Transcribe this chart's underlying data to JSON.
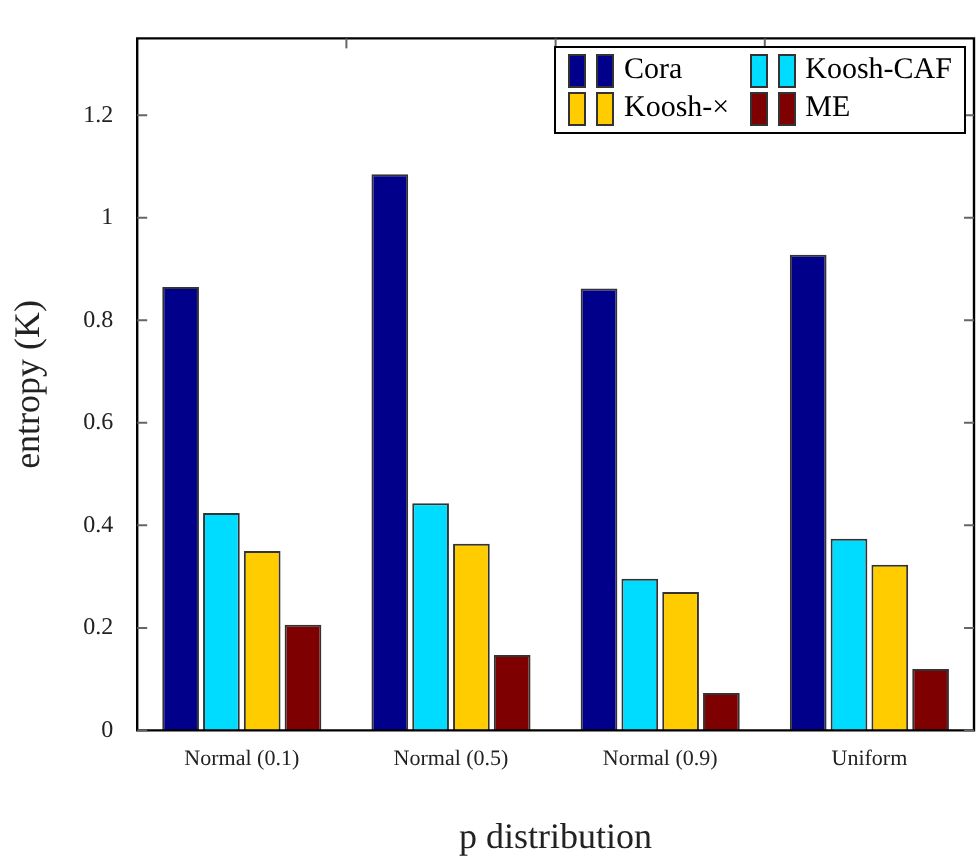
{
  "chart_data": {
    "type": "bar",
    "xlabel": "p distribution",
    "ylabel": "entropy (K)",
    "categories": [
      "Normal (0.1)",
      "Normal (0.5)",
      "Normal (0.9)",
      "Uniform"
    ],
    "series": [
      {
        "name": "Cora",
        "color": "#00008b",
        "values": [
          0.865,
          1.085,
          0.862,
          0.928
        ]
      },
      {
        "name": "Koosh-CAF",
        "color": "#00dcff",
        "values": [
          0.424,
          0.443,
          0.296,
          0.374
        ]
      },
      {
        "name": "Koosh-×",
        "color": "#ffcc00",
        "values": [
          0.35,
          0.364,
          0.27,
          0.323
        ]
      },
      {
        "name": "ME",
        "color": "#7f0000",
        "values": [
          0.206,
          0.147,
          0.073,
          0.12
        ]
      }
    ],
    "ylim": [
      0,
      1.35
    ],
    "yticks": [
      0,
      0.2,
      0.4,
      0.6,
      0.8,
      1,
      1.2
    ],
    "grid": false,
    "legend": "top right"
  }
}
